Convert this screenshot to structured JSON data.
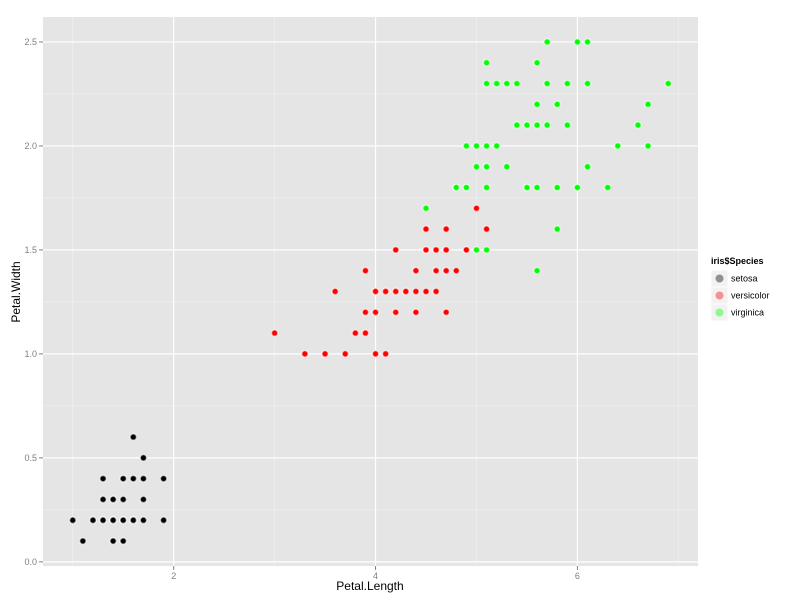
{
  "chart_data": {
    "type": "scatter",
    "xlabel": "Petal.Length",
    "ylabel": "Petal.Width",
    "xlim": [
      0.705,
      7.195
    ],
    "ylim": [
      -0.02,
      2.62
    ],
    "x_ticks": [
      2,
      4,
      6
    ],
    "y_ticks": [
      0.0,
      0.5,
      1.0,
      1.5,
      2.0,
      2.5
    ],
    "x_tick_labels": [
      "2",
      "4",
      "6"
    ],
    "y_tick_labels": [
      "0.0",
      "0.5",
      "1.0",
      "1.5",
      "2.0",
      "2.5"
    ],
    "grid": true,
    "legend": {
      "title": "iris$Species",
      "position": "right"
    },
    "series": [
      {
        "name": "setosa",
        "color": "#000000",
        "points": [
          [
            1.4,
            0.2
          ],
          [
            1.4,
            0.2
          ],
          [
            1.3,
            0.2
          ],
          [
            1.5,
            0.2
          ],
          [
            1.4,
            0.2
          ],
          [
            1.7,
            0.4
          ],
          [
            1.4,
            0.3
          ],
          [
            1.5,
            0.2
          ],
          [
            1.4,
            0.2
          ],
          [
            1.5,
            0.1
          ],
          [
            1.5,
            0.2
          ],
          [
            1.6,
            0.2
          ],
          [
            1.4,
            0.1
          ],
          [
            1.1,
            0.1
          ],
          [
            1.2,
            0.2
          ],
          [
            1.5,
            0.4
          ],
          [
            1.3,
            0.4
          ],
          [
            1.4,
            0.3
          ],
          [
            1.7,
            0.3
          ],
          [
            1.5,
            0.3
          ],
          [
            1.7,
            0.2
          ],
          [
            1.5,
            0.4
          ],
          [
            1.0,
            0.2
          ],
          [
            1.7,
            0.5
          ],
          [
            1.9,
            0.2
          ],
          [
            1.6,
            0.2
          ],
          [
            1.6,
            0.4
          ],
          [
            1.5,
            0.2
          ],
          [
            1.4,
            0.2
          ],
          [
            1.6,
            0.2
          ],
          [
            1.6,
            0.2
          ],
          [
            1.5,
            0.4
          ],
          [
            1.5,
            0.1
          ],
          [
            1.4,
            0.2
          ],
          [
            1.5,
            0.2
          ],
          [
            1.2,
            0.2
          ],
          [
            1.3,
            0.2
          ],
          [
            1.4,
            0.1
          ],
          [
            1.3,
            0.2
          ],
          [
            1.5,
            0.2
          ],
          [
            1.3,
            0.3
          ],
          [
            1.3,
            0.3
          ],
          [
            1.3,
            0.2
          ],
          [
            1.6,
            0.6
          ],
          [
            1.9,
            0.4
          ],
          [
            1.4,
            0.3
          ],
          [
            1.6,
            0.2
          ],
          [
            1.4,
            0.2
          ],
          [
            1.5,
            0.2
          ],
          [
            1.4,
            0.2
          ]
        ]
      },
      {
        "name": "versicolor",
        "color": "#ff0000",
        "points": [
          [
            4.7,
            1.4
          ],
          [
            4.5,
            1.5
          ],
          [
            4.9,
            1.5
          ],
          [
            4.0,
            1.3
          ],
          [
            4.6,
            1.5
          ],
          [
            4.5,
            1.3
          ],
          [
            4.7,
            1.6
          ],
          [
            3.3,
            1.0
          ],
          [
            4.6,
            1.3
          ],
          [
            3.9,
            1.4
          ],
          [
            3.5,
            1.0
          ],
          [
            4.2,
            1.5
          ],
          [
            4.0,
            1.0
          ],
          [
            4.7,
            1.4
          ],
          [
            3.6,
            1.3
          ],
          [
            4.4,
            1.4
          ],
          [
            4.5,
            1.5
          ],
          [
            4.1,
            1.0
          ],
          [
            4.5,
            1.5
          ],
          [
            3.9,
            1.1
          ],
          [
            4.8,
            1.8
          ],
          [
            4.0,
            1.3
          ],
          [
            4.9,
            1.5
          ],
          [
            4.7,
            1.2
          ],
          [
            4.3,
            1.3
          ],
          [
            4.4,
            1.4
          ],
          [
            4.8,
            1.4
          ],
          [
            5.0,
            1.7
          ],
          [
            4.5,
            1.5
          ],
          [
            3.5,
            1.0
          ],
          [
            3.8,
            1.1
          ],
          [
            3.7,
            1.0
          ],
          [
            3.9,
            1.2
          ],
          [
            5.1,
            1.6
          ],
          [
            4.5,
            1.5
          ],
          [
            4.5,
            1.6
          ],
          [
            4.7,
            1.5
          ],
          [
            4.4,
            1.3
          ],
          [
            4.1,
            1.3
          ],
          [
            4.0,
            1.3
          ],
          [
            4.4,
            1.2
          ],
          [
            4.6,
            1.4
          ],
          [
            4.0,
            1.2
          ],
          [
            3.3,
            1.0
          ],
          [
            4.2,
            1.3
          ],
          [
            4.2,
            1.2
          ],
          [
            4.2,
            1.3
          ],
          [
            4.3,
            1.3
          ],
          [
            3.0,
            1.1
          ],
          [
            4.1,
            1.3
          ]
        ]
      },
      {
        "name": "virginica",
        "color": "#00ff00",
        "points": [
          [
            6.0,
            2.5
          ],
          [
            5.1,
            1.9
          ],
          [
            5.9,
            2.1
          ],
          [
            5.6,
            1.8
          ],
          [
            5.8,
            2.2
          ],
          [
            6.6,
            2.1
          ],
          [
            4.5,
            1.7
          ],
          [
            6.3,
            1.8
          ],
          [
            5.8,
            1.8
          ],
          [
            6.1,
            2.5
          ],
          [
            5.1,
            2.0
          ],
          [
            5.3,
            1.9
          ],
          [
            5.5,
            2.1
          ],
          [
            5.0,
            2.0
          ],
          [
            5.1,
            2.4
          ],
          [
            5.3,
            2.3
          ],
          [
            5.5,
            1.8
          ],
          [
            6.7,
            2.2
          ],
          [
            6.9,
            2.3
          ],
          [
            5.0,
            1.5
          ],
          [
            5.7,
            2.3
          ],
          [
            4.9,
            2.0
          ],
          [
            6.7,
            2.0
          ],
          [
            4.9,
            1.8
          ],
          [
            5.7,
            2.1
          ],
          [
            6.0,
            1.8
          ],
          [
            4.8,
            1.8
          ],
          [
            4.9,
            1.8
          ],
          [
            5.6,
            2.1
          ],
          [
            5.8,
            1.6
          ],
          [
            6.1,
            1.9
          ],
          [
            6.4,
            2.0
          ],
          [
            5.6,
            2.2
          ],
          [
            5.1,
            1.5
          ],
          [
            5.6,
            1.4
          ],
          [
            6.1,
            2.3
          ],
          [
            5.6,
            2.4
          ],
          [
            5.5,
            1.8
          ],
          [
            4.8,
            1.8
          ],
          [
            5.4,
            2.1
          ],
          [
            5.6,
            2.4
          ],
          [
            5.1,
            2.3
          ],
          [
            5.1,
            1.9
          ],
          [
            5.9,
            2.3
          ],
          [
            5.7,
            2.5
          ],
          [
            5.2,
            2.3
          ],
          [
            5.0,
            1.9
          ],
          [
            5.2,
            2.0
          ],
          [
            5.4,
            2.3
          ],
          [
            5.1,
            1.8
          ]
        ]
      }
    ]
  }
}
